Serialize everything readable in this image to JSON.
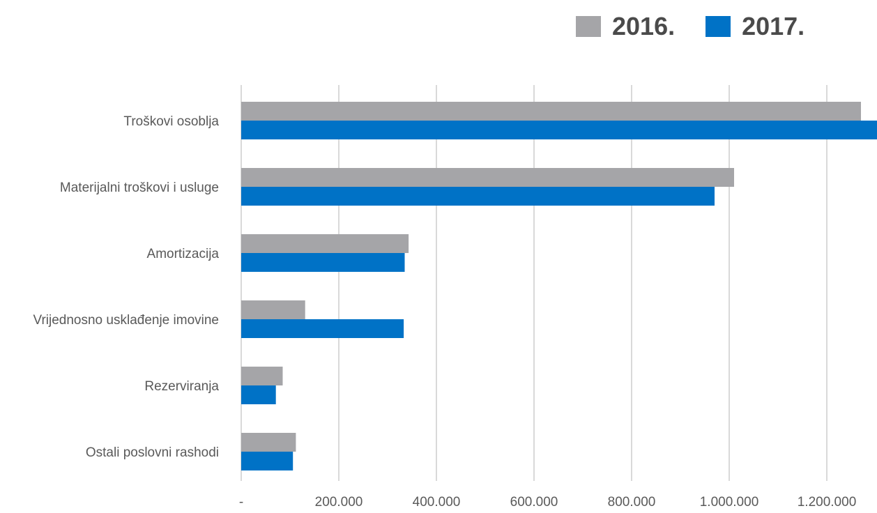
{
  "legend": [
    {
      "label": "2016.",
      "color": "#a5a5a8"
    },
    {
      "label": "2017.",
      "color": "#0072c6"
    }
  ],
  "chart_data": {
    "type": "bar",
    "orientation": "horizontal",
    "categories": [
      "Troškovi osoblja",
      "Materijalni troškovi i usluge",
      "Amortizacija",
      "Vrijednosno usklađenje imovine",
      "Rezerviranja",
      "Ostali poslovni rashodi"
    ],
    "series": [
      {
        "name": "2016.",
        "color": "#a5a5a8",
        "values": [
          1270000,
          1010000,
          343000,
          131000,
          85000,
          112000
        ]
      },
      {
        "name": "2017.",
        "color": "#0072c6",
        "values": [
          1305000,
          970000,
          335000,
          333000,
          71000,
          106000
        ]
      }
    ],
    "xlim": [
      0,
      1300000
    ],
    "x_ticks": [
      0,
      200000,
      400000,
      600000,
      800000,
      1000000,
      1200000
    ],
    "x_tick_labels": [
      "-",
      "200.000",
      "400.000",
      "600.000",
      "800.000",
      "1.000.000",
      "1.200.000"
    ],
    "grid": true,
    "legend_position": "top-right"
  }
}
